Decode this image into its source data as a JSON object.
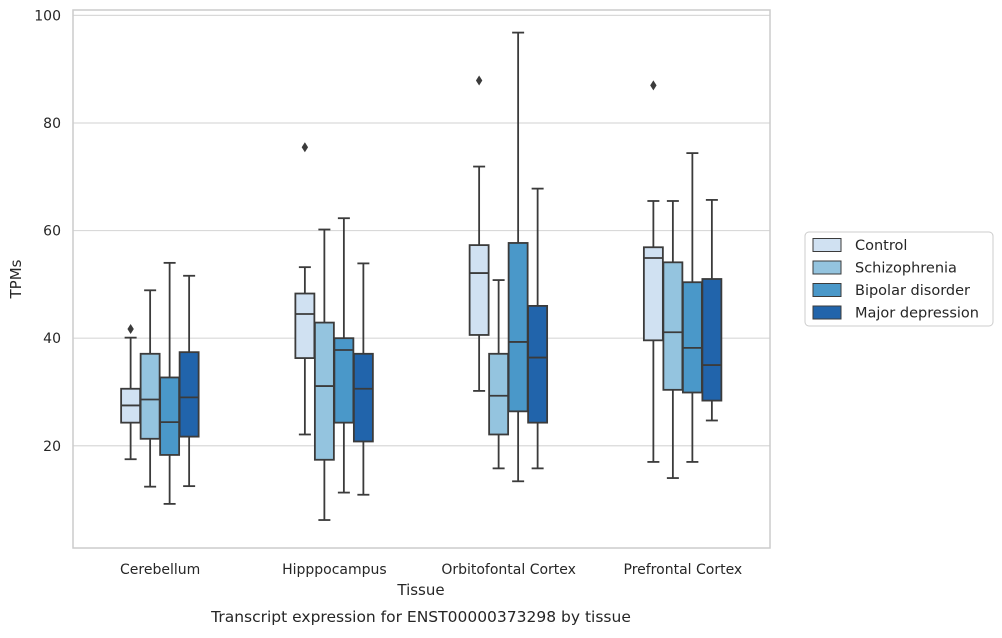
{
  "chart_data": {
    "type": "box",
    "caption": "Transcript expression for ENST00000373298 by tissue",
    "xlabel": "Tissue",
    "ylabel": "TPMs",
    "ylim": [
      1,
      101
    ],
    "yticks": [
      20,
      40,
      60,
      80,
      100
    ],
    "grid": "horizontal",
    "legend_position": "right",
    "categories": [
      "Cerebellum",
      "Hipppocampus",
      "Orbitofontal Cortex",
      "Prefrontal Cortex"
    ],
    "series": [
      {
        "name": "Control",
        "color": "#d0e1f2",
        "boxes": [
          {
            "whislo": 17.5,
            "q1": 24.3,
            "median": 27.5,
            "q3": 30.6,
            "whishi": 40.1,
            "fliers": [
              41.7
            ]
          },
          {
            "whislo": 22.1,
            "q1": 36.3,
            "median": 44.5,
            "q3": 48.3,
            "whishi": 53.2,
            "fliers": [
              75.5
            ]
          },
          {
            "whislo": 30.2,
            "q1": 40.6,
            "median": 52.1,
            "q3": 57.3,
            "whishi": 71.9,
            "fliers": [
              87.9
            ]
          },
          {
            "whislo": 17.0,
            "q1": 39.6,
            "median": 54.9,
            "q3": 56.9,
            "whishi": 65.5,
            "fliers": [
              87.0
            ]
          }
        ]
      },
      {
        "name": "Schizophrenia",
        "color": "#94c4df",
        "boxes": [
          {
            "whislo": 12.4,
            "q1": 21.3,
            "median": 28.6,
            "q3": 37.1,
            "whishi": 48.9,
            "fliers": []
          },
          {
            "whislo": 6.2,
            "q1": 17.4,
            "median": 31.1,
            "q3": 42.9,
            "whishi": 60.2,
            "fliers": []
          },
          {
            "whislo": 15.8,
            "q1": 22.1,
            "median": 29.3,
            "q3": 37.1,
            "whishi": 50.8,
            "fliers": []
          },
          {
            "whislo": 14.0,
            "q1": 30.4,
            "median": 41.1,
            "q3": 54.1,
            "whishi": 65.5,
            "fliers": []
          }
        ]
      },
      {
        "name": "Bipolar disorder",
        "color": "#4a98c9",
        "boxes": [
          {
            "whislo": 9.2,
            "q1": 18.3,
            "median": 24.4,
            "q3": 32.7,
            "whishi": 54.0,
            "fliers": []
          },
          {
            "whislo": 11.3,
            "q1": 24.3,
            "median": 37.8,
            "q3": 40.0,
            "whishi": 62.3,
            "fliers": []
          },
          {
            "whislo": 13.4,
            "q1": 26.4,
            "median": 39.3,
            "q3": 57.7,
            "whishi": 96.8,
            "fliers": []
          },
          {
            "whislo": 17.0,
            "q1": 29.9,
            "median": 38.2,
            "q3": 50.4,
            "whishi": 74.4,
            "fliers": []
          }
        ]
      },
      {
        "name": "Major depression",
        "color": "#2164ab",
        "boxes": [
          {
            "whislo": 12.5,
            "q1": 21.7,
            "median": 29.0,
            "q3": 37.4,
            "whishi": 51.6,
            "fliers": []
          },
          {
            "whislo": 10.9,
            "q1": 20.8,
            "median": 30.6,
            "q3": 37.1,
            "whishi": 53.9,
            "fliers": []
          },
          {
            "whislo": 15.8,
            "q1": 24.3,
            "median": 36.4,
            "q3": 46.0,
            "whishi": 67.8,
            "fliers": []
          },
          {
            "whislo": 24.7,
            "q1": 28.4,
            "median": 35.0,
            "q3": 51.0,
            "whishi": 65.7,
            "fliers": []
          }
        ]
      }
    ]
  }
}
